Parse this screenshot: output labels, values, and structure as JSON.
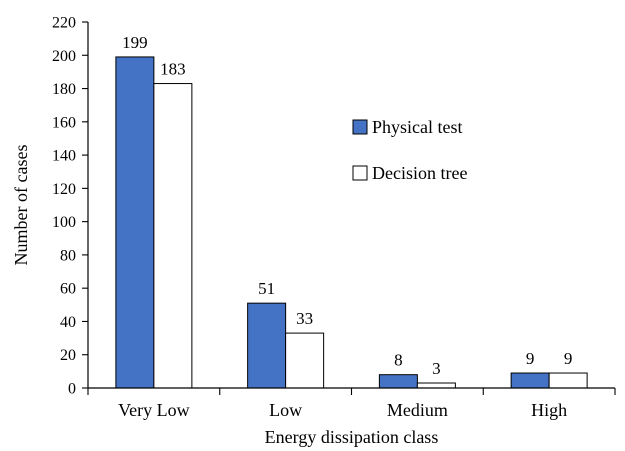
{
  "chart_data": {
    "type": "bar",
    "title": "",
    "xlabel": "Energy dissipation class",
    "ylabel": "Number of cases",
    "categories": [
      "Very Low",
      "Low",
      "Medium",
      "High"
    ],
    "ylim": [
      0,
      220
    ],
    "yticks": [
      0,
      20,
      40,
      60,
      80,
      100,
      120,
      140,
      160,
      180,
      200,
      220
    ],
    "grid": false,
    "legend_position": "right",
    "series": [
      {
        "name": "Physical test",
        "values": [
          199,
          51,
          8,
          9
        ],
        "color": "#4472C4"
      },
      {
        "name": "Decision tree",
        "values": [
          183,
          33,
          3,
          9
        ],
        "color": "#FFFFFF"
      }
    ]
  }
}
